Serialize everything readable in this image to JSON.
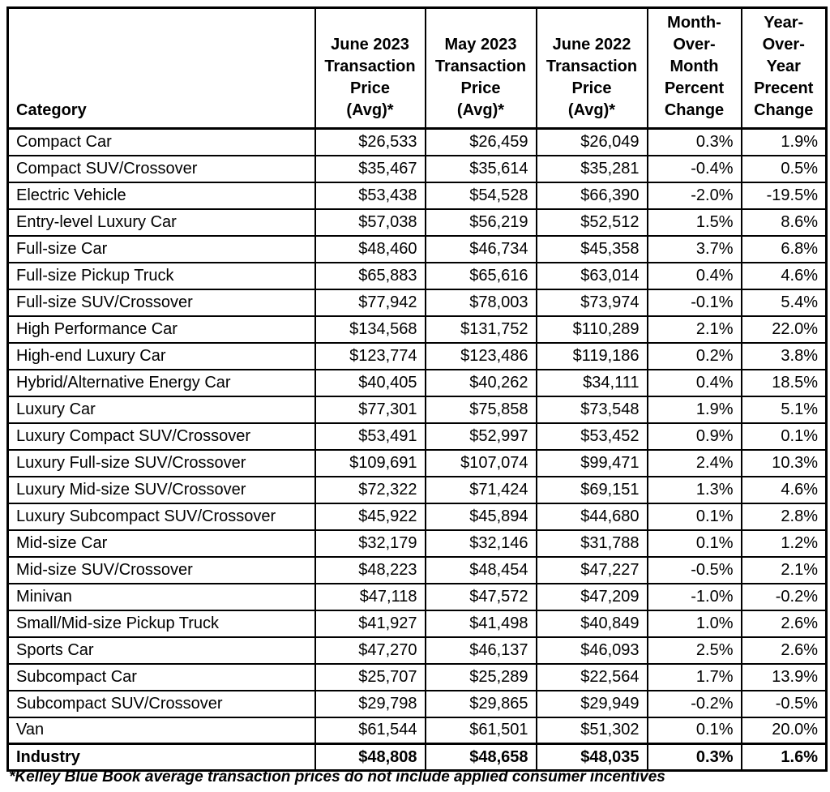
{
  "table": {
    "columns": [
      {
        "key": "category",
        "label": "Category"
      },
      {
        "key": "jun2023",
        "label": "June 2023\nTransaction\nPrice\n(Avg)*"
      },
      {
        "key": "may2023",
        "label": "May 2023\nTransaction\nPrice\n(Avg)*"
      },
      {
        "key": "jun2022",
        "label": "June 2022\nTransaction\nPrice\n(Avg)*"
      },
      {
        "key": "mom",
        "label": "Month-\nOver-\nMonth\nPercent\nChange"
      },
      {
        "key": "yoy",
        "label": "Year-\nOver-\nYear\nPrecent\nChange"
      }
    ],
    "rows": [
      {
        "category": "Compact Car",
        "jun2023": "$26,533",
        "may2023": "$26,459",
        "jun2022": "$26,049",
        "mom": "0.3%",
        "yoy": "1.9%",
        "bold": false
      },
      {
        "category": "Compact SUV/Crossover",
        "jun2023": "$35,467",
        "may2023": "$35,614",
        "jun2022": "$35,281",
        "mom": "-0.4%",
        "yoy": "0.5%",
        "bold": false
      },
      {
        "category": "Electric Vehicle",
        "jun2023": "$53,438",
        "may2023": "$54,528",
        "jun2022": "$66,390",
        "mom": "-2.0%",
        "yoy": "-19.5%",
        "bold": false
      },
      {
        "category": "Entry-level Luxury Car",
        "jun2023": "$57,038",
        "may2023": "$56,219",
        "jun2022": "$52,512",
        "mom": "1.5%",
        "yoy": "8.6%",
        "bold": false
      },
      {
        "category": "Full-size Car",
        "jun2023": "$48,460",
        "may2023": "$46,734",
        "jun2022": "$45,358",
        "mom": "3.7%",
        "yoy": "6.8%",
        "bold": false
      },
      {
        "category": "Full-size Pickup Truck",
        "jun2023": "$65,883",
        "may2023": "$65,616",
        "jun2022": "$63,014",
        "mom": "0.4%",
        "yoy": "4.6%",
        "bold": false
      },
      {
        "category": "Full-size SUV/Crossover",
        "jun2023": "$77,942",
        "may2023": "$78,003",
        "jun2022": "$73,974",
        "mom": "-0.1%",
        "yoy": "5.4%",
        "bold": false
      },
      {
        "category": "High Performance Car",
        "jun2023": "$134,568",
        "may2023": "$131,752",
        "jun2022": "$110,289",
        "mom": "2.1%",
        "yoy": "22.0%",
        "bold": false
      },
      {
        "category": "High-end Luxury Car",
        "jun2023": "$123,774",
        "may2023": "$123,486",
        "jun2022": "$119,186",
        "mom": "0.2%",
        "yoy": "3.8%",
        "bold": false
      },
      {
        "category": "Hybrid/Alternative Energy Car",
        "jun2023": "$40,405",
        "may2023": "$40,262",
        "jun2022": "$34,111",
        "mom": "0.4%",
        "yoy": "18.5%",
        "bold": false
      },
      {
        "category": "Luxury Car",
        "jun2023": "$77,301",
        "may2023": "$75,858",
        "jun2022": "$73,548",
        "mom": "1.9%",
        "yoy": "5.1%",
        "bold": false
      },
      {
        "category": "Luxury Compact SUV/Crossover",
        "jun2023": "$53,491",
        "may2023": "$52,997",
        "jun2022": "$53,452",
        "mom": "0.9%",
        "yoy": "0.1%",
        "bold": false
      },
      {
        "category": "Luxury Full-size SUV/Crossover",
        "jun2023": "$109,691",
        "may2023": "$107,074",
        "jun2022": "$99,471",
        "mom": "2.4%",
        "yoy": "10.3%",
        "bold": false
      },
      {
        "category": "Luxury Mid-size SUV/Crossover",
        "jun2023": "$72,322",
        "may2023": "$71,424",
        "jun2022": "$69,151",
        "mom": "1.3%",
        "yoy": "4.6%",
        "bold": false
      },
      {
        "category": "Luxury Subcompact SUV/Crossover",
        "jun2023": "$45,922",
        "may2023": "$45,894",
        "jun2022": "$44,680",
        "mom": "0.1%",
        "yoy": "2.8%",
        "bold": false
      },
      {
        "category": "Mid-size Car",
        "jun2023": "$32,179",
        "may2023": "$32,146",
        "jun2022": "$31,788",
        "mom": "0.1%",
        "yoy": "1.2%",
        "bold": false
      },
      {
        "category": "Mid-size SUV/Crossover",
        "jun2023": "$48,223",
        "may2023": "$48,454",
        "jun2022": "$47,227",
        "mom": "-0.5%",
        "yoy": "2.1%",
        "bold": false
      },
      {
        "category": "Minivan",
        "jun2023": "$47,118",
        "may2023": "$47,572",
        "jun2022": "$47,209",
        "mom": "-1.0%",
        "yoy": "-0.2%",
        "bold": false
      },
      {
        "category": "Small/Mid-size Pickup Truck",
        "jun2023": "$41,927",
        "may2023": "$41,498",
        "jun2022": "$40,849",
        "mom": "1.0%",
        "yoy": "2.6%",
        "bold": false
      },
      {
        "category": "Sports Car",
        "jun2023": "$47,270",
        "may2023": "$46,137",
        "jun2022": "$46,093",
        "mom": "2.5%",
        "yoy": "2.6%",
        "bold": false
      },
      {
        "category": "Subcompact Car",
        "jun2023": "$25,707",
        "may2023": "$25,289",
        "jun2022": "$22,564",
        "mom": "1.7%",
        "yoy": "13.9%",
        "bold": false
      },
      {
        "category": "Subcompact SUV/Crossover",
        "jun2023": "$29,798",
        "may2023": "$29,865",
        "jun2022": "$29,949",
        "mom": "-0.2%",
        "yoy": "-0.5%",
        "bold": false
      },
      {
        "category": "Van",
        "jun2023": "$61,544",
        "may2023": "$61,501",
        "jun2022": "$51,302",
        "mom": "0.1%",
        "yoy": "20.0%",
        "bold": false
      },
      {
        "category": "Industry",
        "jun2023": "$48,808",
        "may2023": "$48,658",
        "jun2022": "$48,035",
        "mom": "0.3%",
        "yoy": "1.6%",
        "bold": true
      }
    ],
    "footnote": "*Kelley Blue Book average transaction prices do not include applied consumer incentives"
  }
}
